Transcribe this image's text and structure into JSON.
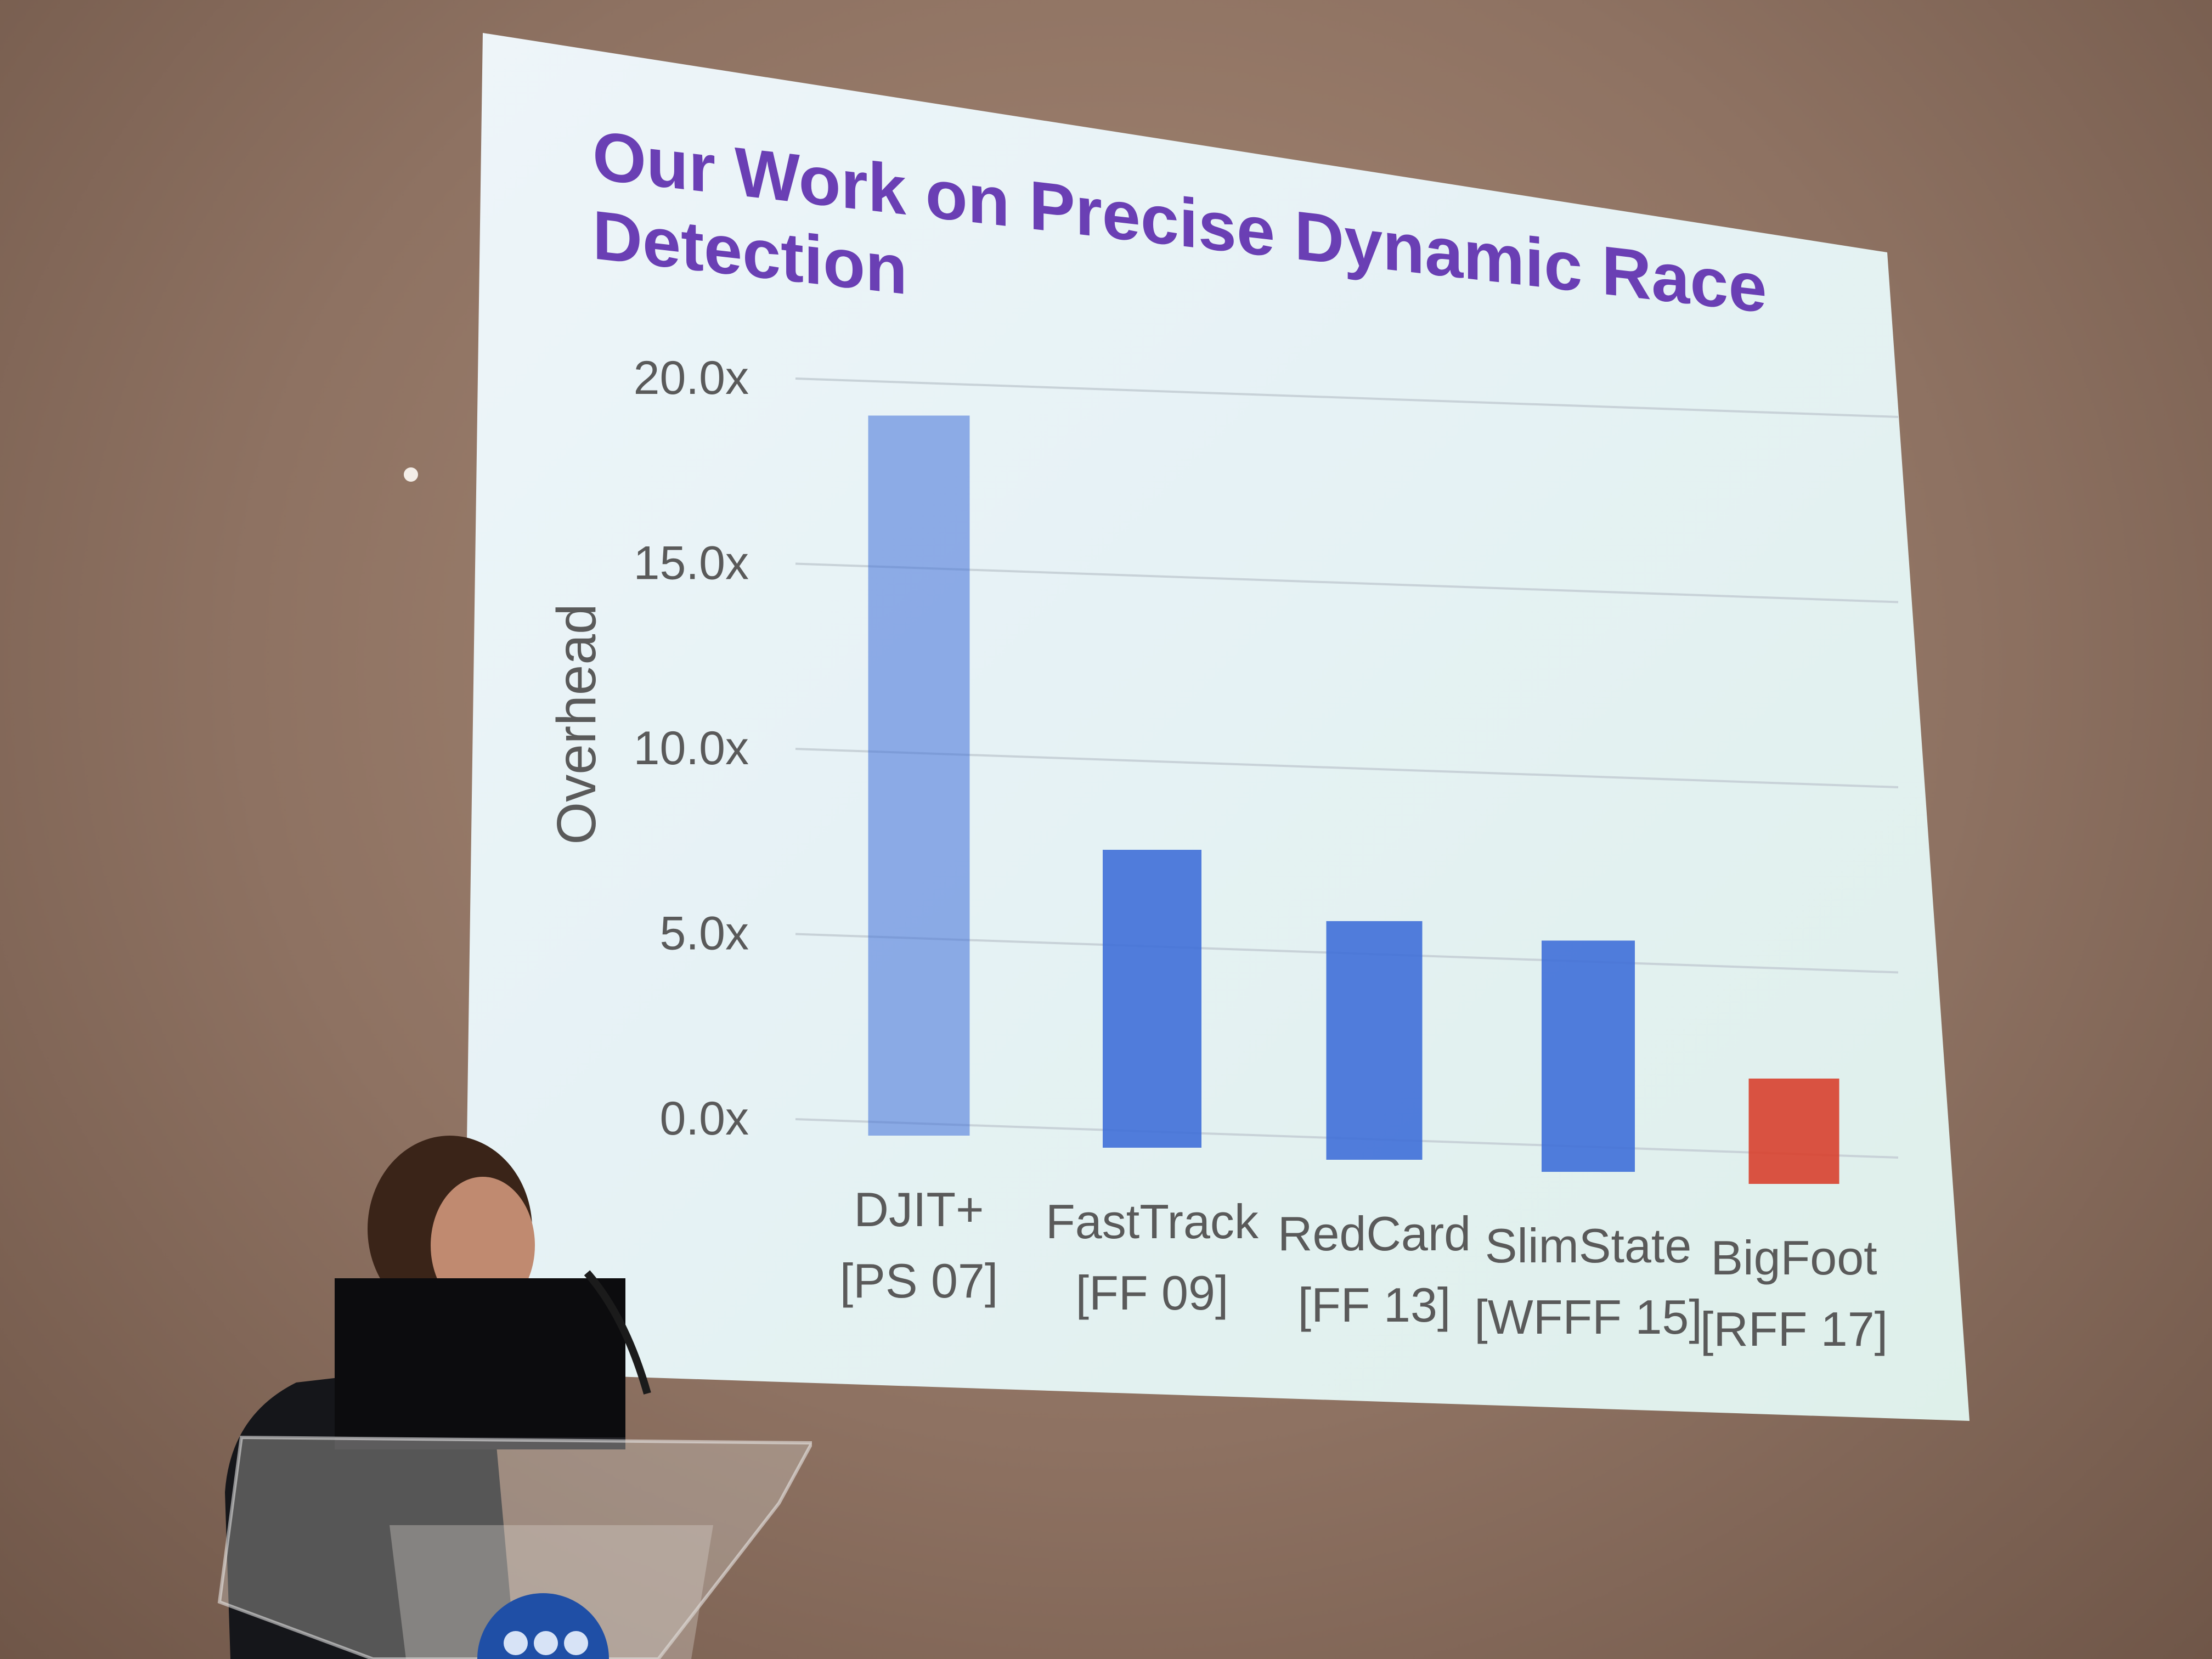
{
  "slide": {
    "title": "Our Work on Precise Dynamic Race Detection"
  },
  "colors": {
    "title": "#6a3fb4",
    "bar_blue": "#3f6fd8",
    "bar_highlight": "#d8402e",
    "axis_text": "#5a5a5a"
  },
  "chart_data": {
    "type": "bar",
    "title": "",
    "xlabel": "",
    "ylabel": "Overhead",
    "ylim": [
      0,
      20
    ],
    "yticks": [
      "0.0x",
      "5.0x",
      "10.0x",
      "15.0x",
      "20.0x"
    ],
    "grid": true,
    "categories": [
      [
        "DJIT+",
        "[PS 07]"
      ],
      [
        "FastTrack",
        "[FF 09]"
      ],
      [
        "RedCard",
        "[FF 13]"
      ],
      [
        "SlimState",
        "[WFFF 15]"
      ],
      [
        "BigFoot",
        "[RFF 17]"
      ]
    ],
    "values": [
      19.0,
      7.6,
      6.0,
      5.8,
      2.4
    ],
    "bar_colors": [
      "blue",
      "blue",
      "blue",
      "blue",
      "red"
    ]
  }
}
